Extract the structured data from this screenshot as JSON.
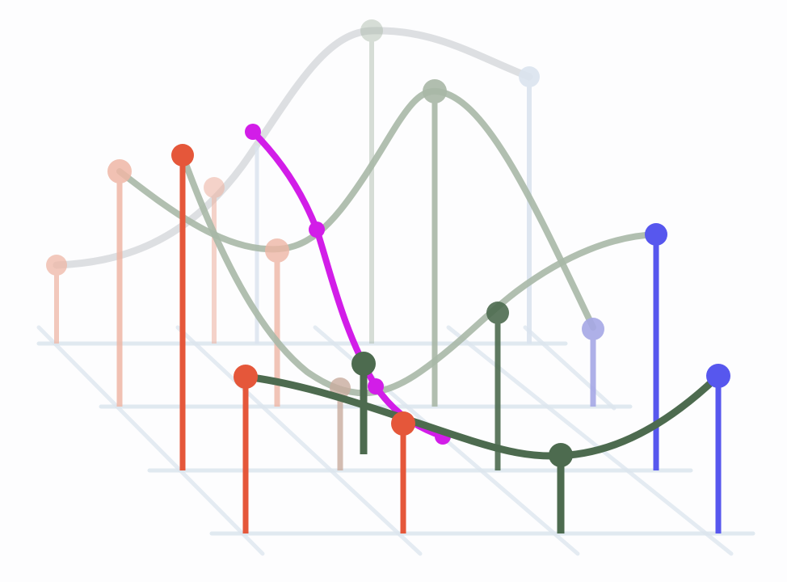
{
  "figure": {
    "description_visible_text": "",
    "colors": {
      "background": "#fdfdfe",
      "grid": "#dce6ee",
      "red": "#e5573a",
      "red_faded": "#efb7a6",
      "green_dark": "#4d6b4f",
      "green_faded": "#a9b8a7",
      "gray_faded": "#d9dcdf",
      "blue": "#5757ee",
      "blue_faded": "#a6a8e6",
      "blue_pale": "#dbe4ef",
      "magenta": "#d21de8",
      "brown_faded": "#c9ad9f"
    },
    "lines": [
      {
        "name": "back-gray-curve",
        "color": "gray_faded",
        "stroke": "gray_faded",
        "nodes": 5
      },
      {
        "name": "middle-green-curve",
        "color": "green_faded",
        "nodes": 5
      },
      {
        "name": "diagonal-green-curve",
        "color": "green_faded",
        "nodes": 4
      },
      {
        "name": "magenta-curve",
        "color": "magenta",
        "nodes": 4
      },
      {
        "name": "front-green-curve",
        "color": "green_dark",
        "nodes": 5
      }
    ]
  }
}
